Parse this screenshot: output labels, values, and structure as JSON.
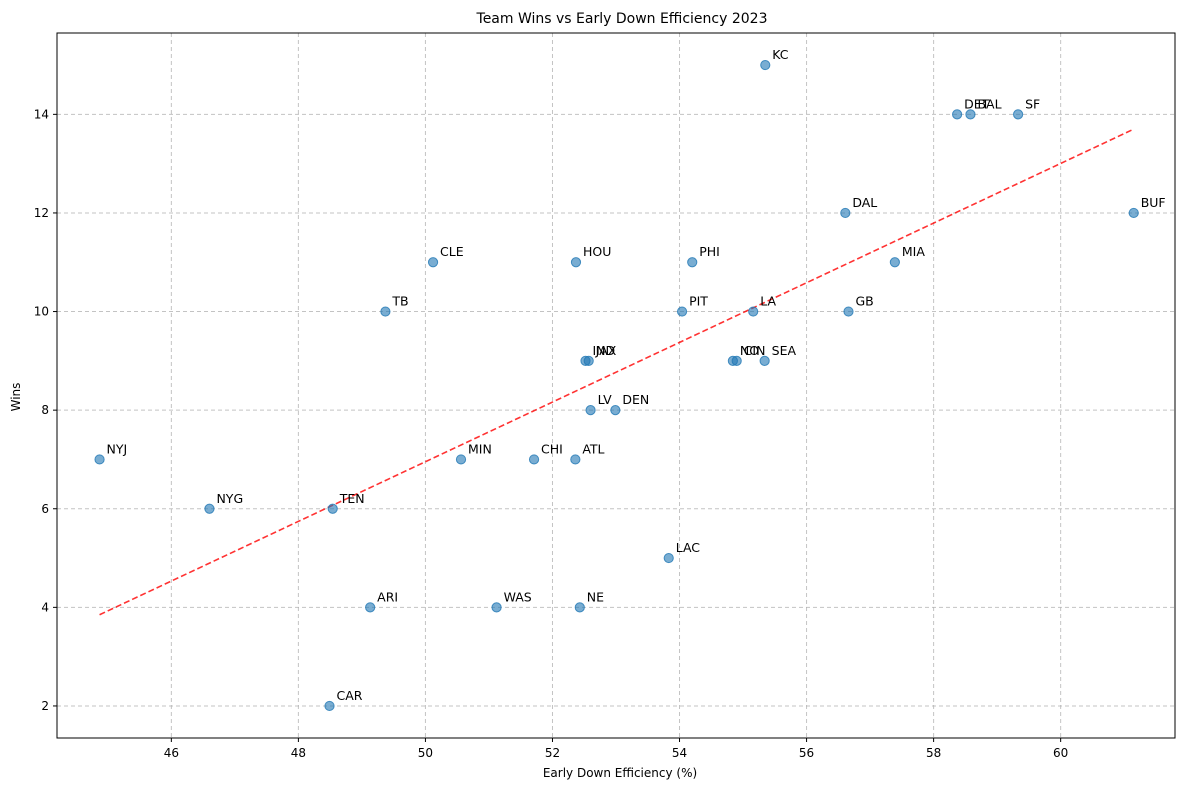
{
  "chart_data": {
    "type": "scatter",
    "title": "Team Wins vs Early Down Efficiency 2023",
    "xlabel": "Early Down Efficiency (%)",
    "ylabel": "Wins",
    "xlim": [
      44.2,
      61.8
    ],
    "ylim": [
      1.35,
      15.65
    ],
    "xticks": [
      46,
      48,
      50,
      52,
      54,
      56,
      58,
      60
    ],
    "yticks": [
      2,
      4,
      6,
      8,
      10,
      12,
      14
    ],
    "grid": true,
    "point_color": "#1f77b4",
    "trend_color": "#ff0000",
    "points": [
      {
        "team": "KC",
        "x": 55.35,
        "y": 15
      },
      {
        "team": "DET",
        "x": 58.37,
        "y": 14
      },
      {
        "team": "BAL",
        "x": 58.58,
        "y": 14
      },
      {
        "team": "SF",
        "x": 59.33,
        "y": 14
      },
      {
        "team": "DAL",
        "x": 56.61,
        "y": 12
      },
      {
        "team": "BUF",
        "x": 61.15,
        "y": 12
      },
      {
        "team": "CLE",
        "x": 50.12,
        "y": 11
      },
      {
        "team": "HOU",
        "x": 52.37,
        "y": 11
      },
      {
        "team": "PHI",
        "x": 54.2,
        "y": 11
      },
      {
        "team": "MIA",
        "x": 57.39,
        "y": 11
      },
      {
        "team": "TB",
        "x": 49.37,
        "y": 10
      },
      {
        "team": "PIT",
        "x": 54.04,
        "y": 10
      },
      {
        "team": "LA",
        "x": 55.16,
        "y": 10
      },
      {
        "team": "GB",
        "x": 56.66,
        "y": 10
      },
      {
        "team": "IND",
        "x": 52.52,
        "y": 9
      },
      {
        "team": "JAX",
        "x": 52.57,
        "y": 9
      },
      {
        "team": "NO",
        "x": 54.84,
        "y": 9
      },
      {
        "team": "CIN",
        "x": 54.9,
        "y": 9
      },
      {
        "team": "SEA",
        "x": 55.34,
        "y": 9
      },
      {
        "team": "LV",
        "x": 52.6,
        "y": 8
      },
      {
        "team": "DEN",
        "x": 52.99,
        "y": 8
      },
      {
        "team": "NYJ",
        "x": 44.87,
        "y": 7
      },
      {
        "team": "MIN",
        "x": 50.56,
        "y": 7
      },
      {
        "team": "CHI",
        "x": 51.71,
        "y": 7
      },
      {
        "team": "ATL",
        "x": 52.36,
        "y": 7
      },
      {
        "team": "NYG",
        "x": 46.6,
        "y": 6
      },
      {
        "team": "TEN",
        "x": 48.54,
        "y": 6
      },
      {
        "team": "LAC",
        "x": 53.83,
        "y": 5
      },
      {
        "team": "ARI",
        "x": 49.13,
        "y": 4
      },
      {
        "team": "WAS",
        "x": 51.12,
        "y": 4
      },
      {
        "team": "NE",
        "x": 52.43,
        "y": 4
      },
      {
        "team": "CAR",
        "x": 48.49,
        "y": 2
      }
    ],
    "trend_line": {
      "x": [
        44.87,
        61.15
      ],
      "y": [
        3.85,
        13.7
      ]
    }
  }
}
